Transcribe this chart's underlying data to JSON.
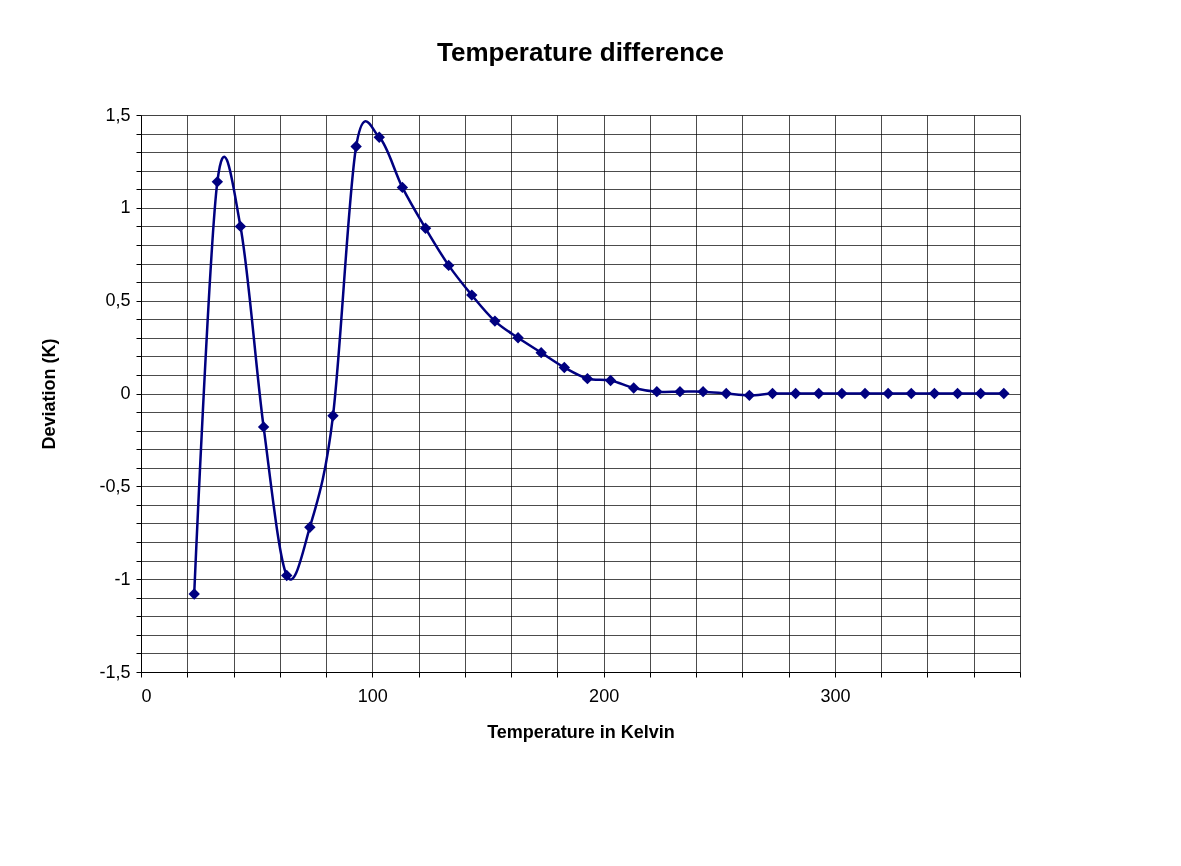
{
  "chart_data": {
    "type": "line",
    "title": "Temperature difference",
    "xlabel": "Temperature in Kelvin",
    "ylabel": "Deviation (K)",
    "x": [
      23,
      33,
      43,
      53,
      63,
      73,
      83,
      93,
      103,
      113,
      123,
      133,
      143,
      153,
      163,
      173,
      183,
      193,
      203,
      213,
      223,
      233,
      243,
      253,
      263,
      273,
      283,
      293,
      303,
      313,
      323,
      333,
      343,
      353,
      363,
      373
    ],
    "series": [
      {
        "color": "#000080",
        "values": [
          -1.08,
          1.14,
          0.9,
          -0.18,
          -0.98,
          -0.72,
          -0.12,
          1.33,
          1.38,
          1.11,
          0.89,
          0.69,
          0.53,
          0.39,
          0.3,
          0.22,
          0.14,
          0.08,
          0.07,
          0.03,
          0.01,
          0.01,
          0.01,
          0.0,
          -0.01,
          0.0,
          0.0,
          0.0,
          0.0,
          0.0,
          0.0,
          0.0,
          0.0,
          0.0,
          0.0,
          0.0
        ]
      }
    ],
    "xlim": [
      0,
      380
    ],
    "xticks": [
      0,
      {
        "value": 20,
        "label": null
      },
      {
        "value": 40,
        "label": null
      },
      {
        "value": 60,
        "label": null
      },
      {
        "value": 80,
        "label": null
      },
      100,
      {
        "value": 120,
        "label": null
      },
      {
        "value": 140,
        "label": null
      },
      {
        "value": 160,
        "label": null
      },
      {
        "value": 180,
        "label": null
      },
      200,
      {
        "value": 220,
        "label": null
      },
      {
        "value": 240,
        "label": null
      },
      {
        "value": 260,
        "label": null
      },
      {
        "value": 280,
        "label": null
      },
      300,
      {
        "value": 320,
        "label": null
      },
      {
        "value": 340,
        "label": null
      },
      {
        "value": 360,
        "label": null
      },
      {
        "value": 380,
        "label": null
      }
    ],
    "ylim": [
      -1.5,
      1.5
    ],
    "yticks": [
      {
        "value": -1.5,
        "label": "-1,5"
      },
      {
        "value": -1.4,
        "label": null
      },
      {
        "value": -1.3,
        "label": null
      },
      {
        "value": -1.2,
        "label": null
      },
      {
        "value": -1.1,
        "label": null
      },
      -1,
      {
        "value": -0.9,
        "label": null
      },
      {
        "value": -0.8,
        "label": null
      },
      {
        "value": -0.7,
        "label": null
      },
      {
        "value": -0.6,
        "label": null
      },
      {
        "value": -0.5,
        "label": "-0,5"
      },
      {
        "value": -0.4,
        "label": null
      },
      {
        "value": -0.3,
        "label": null
      },
      {
        "value": -0.2,
        "label": null
      },
      {
        "value": -0.1,
        "label": null
      },
      0,
      {
        "value": 0.1,
        "label": null
      },
      {
        "value": 0.2,
        "label": null
      },
      {
        "value": 0.3,
        "label": null
      },
      {
        "value": 0.4,
        "label": null
      },
      {
        "value": 0.5,
        "label": "0,5"
      },
      {
        "value": 0.6,
        "label": null
      },
      {
        "value": 0.7,
        "label": null
      },
      {
        "value": 0.8,
        "label": null
      },
      {
        "value": 0.9,
        "label": null
      },
      1,
      {
        "value": 1.1,
        "label": null
      },
      {
        "value": 1.2,
        "label": null
      },
      {
        "value": 1.3,
        "label": null
      },
      {
        "value": 1.4,
        "label": null
      },
      {
        "value": 1.5,
        "label": "1,5"
      }
    ],
    "grid": true,
    "marker": "diamond",
    "line_style": "solid",
    "legend": false
  }
}
